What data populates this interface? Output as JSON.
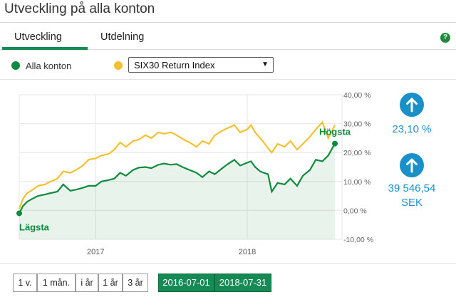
{
  "page_title": "Utveckling på alla konton",
  "tabs": [
    {
      "label": "Utveckling",
      "active": true
    },
    {
      "label": "Utdelning",
      "active": false
    }
  ],
  "help_icon": "question-icon",
  "legend": {
    "series_a": {
      "label": "Alla konton",
      "color": "#108a3c"
    },
    "series_b_color": "#f5c030"
  },
  "index_select": {
    "value": "SIX30 Return Index"
  },
  "stats": {
    "percent": "23,10 %",
    "amount_value": "39 546,54",
    "amount_unit": "SEK",
    "icon": "arrow-up-icon"
  },
  "range_buttons": [
    "1 v.",
    "1 mån.",
    "i år",
    "1 år",
    "3 år"
  ],
  "date_range": {
    "start": "2016-07-01",
    "end": "2018-07-31"
  },
  "chart_data": {
    "type": "line",
    "x_range": [
      "2016-07-01",
      "2018-07-31"
    ],
    "xticks": [
      {
        "label": "2017",
        "date": "2017-01-01"
      },
      {
        "label": "2018",
        "date": "2018-01-01"
      }
    ],
    "ylim": [
      -10,
      40
    ],
    "yticks": [
      -10,
      0,
      10,
      20,
      30,
      40
    ],
    "ytick_labels": [
      "-10,00 %",
      "0,00 %",
      "10,00 %",
      "20,00 %",
      "30,00 %",
      "40,00 %"
    ],
    "grid": true,
    "annotations": {
      "min_label": "Lägsta",
      "max_label": "Högsta"
    },
    "series": [
      {
        "name": "Alla konton",
        "color": "#108a3c",
        "fill": true,
        "x": [
          "2016-07-01",
          "2016-07-10",
          "2016-07-20",
          "2016-08-01",
          "2016-08-15",
          "2016-09-01",
          "2016-09-15",
          "2016-10-01",
          "2016-10-15",
          "2016-11-01",
          "2016-11-15",
          "2016-12-01",
          "2016-12-15",
          "2017-01-01",
          "2017-01-15",
          "2017-02-01",
          "2017-02-15",
          "2017-03-01",
          "2017-03-15",
          "2017-04-01",
          "2017-04-15",
          "2017-05-01",
          "2017-05-15",
          "2017-06-01",
          "2017-06-15",
          "2017-07-01",
          "2017-07-15",
          "2017-08-01",
          "2017-08-15",
          "2017-09-01",
          "2017-09-15",
          "2017-10-01",
          "2017-10-15",
          "2017-11-01",
          "2017-11-15",
          "2017-12-01",
          "2017-12-15",
          "2018-01-01",
          "2018-01-10",
          "2018-01-20",
          "2018-02-01",
          "2018-02-10",
          "2018-02-20",
          "2018-03-01",
          "2018-03-15",
          "2018-04-01",
          "2018-04-15",
          "2018-05-01",
          "2018-05-15",
          "2018-06-01",
          "2018-06-15",
          "2018-07-01",
          "2018-07-15",
          "2018-07-31"
        ],
        "y": [
          -1,
          1.5,
          3,
          4,
          5,
          5.5,
          6,
          6.5,
          9,
          6.8,
          7.2,
          7.8,
          8.5,
          8.5,
          10,
          10.5,
          11,
          13,
          12,
          14,
          14.8,
          15,
          14.6,
          15.8,
          16.2,
          15.8,
          16,
          14.8,
          14,
          13,
          11.5,
          13.5,
          12.5,
          14.5,
          16,
          17.5,
          15.5,
          16.5,
          17,
          15,
          13.5,
          13,
          12.5,
          6.5,
          9.5,
          9,
          11,
          8.5,
          12,
          14,
          17.5,
          17,
          19,
          23.1
        ]
      },
      {
        "name": "SIX30 Return Index",
        "color": "#f5c030",
        "fill": false,
        "x": [
          "2016-07-01",
          "2016-07-10",
          "2016-07-20",
          "2016-08-01",
          "2016-08-15",
          "2016-09-01",
          "2016-09-15",
          "2016-10-01",
          "2016-10-15",
          "2016-11-01",
          "2016-11-15",
          "2016-12-01",
          "2016-12-15",
          "2017-01-01",
          "2017-01-15",
          "2017-02-01",
          "2017-02-15",
          "2017-03-01",
          "2017-03-15",
          "2017-04-01",
          "2017-04-15",
          "2017-05-01",
          "2017-05-15",
          "2017-06-01",
          "2017-06-15",
          "2017-07-01",
          "2017-07-15",
          "2017-08-01",
          "2017-08-15",
          "2017-09-01",
          "2017-09-15",
          "2017-10-01",
          "2017-10-15",
          "2017-11-01",
          "2017-11-15",
          "2017-12-01",
          "2017-12-15",
          "2018-01-01",
          "2018-01-10",
          "2018-01-20",
          "2018-02-01",
          "2018-02-10",
          "2018-02-20",
          "2018-03-01",
          "2018-03-15",
          "2018-04-01",
          "2018-04-15",
          "2018-05-01",
          "2018-05-15",
          "2018-06-01",
          "2018-06-15",
          "2018-07-01",
          "2018-07-15",
          "2018-07-31"
        ],
        "y": [
          0.5,
          4,
          6,
          7,
          8.5,
          9,
          10,
          11,
          13.5,
          13,
          14,
          15.5,
          17.5,
          18,
          19,
          19.5,
          21,
          23.5,
          22,
          24,
          24.5,
          26,
          25,
          27,
          26.5,
          27,
          26,
          24.5,
          23.5,
          22,
          24,
          23,
          26,
          27.5,
          28.5,
          29.5,
          27,
          28,
          29.5,
          27,
          25,
          23.5,
          21.5,
          20,
          23,
          22,
          24,
          21,
          23,
          25.5,
          28,
          30.5,
          25,
          29.5
        ]
      }
    ]
  }
}
